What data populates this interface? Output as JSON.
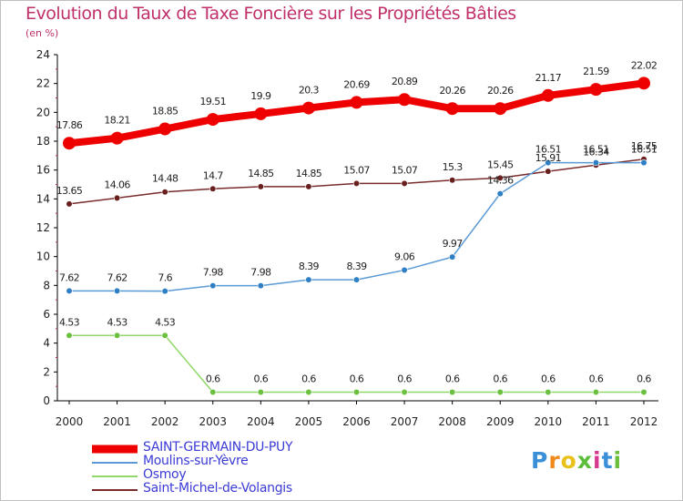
{
  "title": "Evolution du Taux de Taxe Foncière sur les Propriétés Bâties",
  "unit": "(en %)",
  "logo": {
    "text": "Proxiti",
    "letter_colors": [
      "#3a8fd8",
      "#f08a1c",
      "#e8c21a",
      "#5bbd3a",
      "#d63a8e",
      "#3a8fd8",
      "#6bbf3a"
    ]
  },
  "chart_data": {
    "type": "line",
    "categories": [
      "2000",
      "2001",
      "2002",
      "2003",
      "2004",
      "2005",
      "2006",
      "2007",
      "2008",
      "2009",
      "2010",
      "2011",
      "2012"
    ],
    "ylim": [
      0,
      24
    ],
    "yticks": [
      0,
      2,
      4,
      6,
      8,
      10,
      12,
      14,
      16,
      18,
      20,
      22,
      24
    ],
    "grid": false,
    "legend_position": "bottom-left",
    "series": [
      {
        "name": "SAINT-GERMAIN-DU-PUY",
        "color": "#ee0000",
        "width": 8,
        "values": [
          17.86,
          18.21,
          18.85,
          19.51,
          19.9,
          20.3,
          20.69,
          20.89,
          20.26,
          20.26,
          21.17,
          21.59,
          22.02
        ],
        "labels": [
          "17.86",
          "18.21",
          "18.85",
          "19.51",
          "19.9",
          "20.3",
          "20.69",
          "20.89",
          "20.26",
          "20.26",
          "21.17",
          "21.59",
          "22.02"
        ]
      },
      {
        "name": "Moulins-sur-Yèvre",
        "color": "#5b9bd5",
        "marker": "#2f7fc4",
        "width": 1.5,
        "values": [
          7.62,
          7.62,
          7.6,
          7.98,
          7.98,
          8.39,
          8.39,
          9.06,
          9.97,
          14.36,
          16.51,
          16.51,
          16.51
        ],
        "labels": [
          "7.62",
          "7.62",
          "7.6",
          "7.98",
          "7.98",
          "8.39",
          "8.39",
          "9.06",
          "9.97",
          "14.36",
          "16.51",
          "16.51",
          "16.51"
        ]
      },
      {
        "name": "Osmoy",
        "color": "#90d86a",
        "marker": "#6cc040",
        "width": 1.5,
        "values": [
          4.53,
          4.53,
          4.53,
          0.6,
          0.6,
          0.6,
          0.6,
          0.6,
          0.6,
          0.6,
          0.6,
          0.6,
          0.6
        ],
        "labels": [
          "4.53",
          "4.53",
          "4.53",
          "0.6",
          "0.6",
          "0.6",
          "0.6",
          "0.6",
          "0.6",
          "0.6",
          "0.6",
          "0.6",
          "0.6"
        ]
      },
      {
        "name": "Saint-Michel-de-Volangis",
        "color": "#7a2c2c",
        "marker": "#6a1f1f",
        "width": 1.5,
        "values": [
          13.65,
          14.06,
          14.48,
          14.7,
          14.85,
          14.85,
          15.07,
          15.07,
          15.3,
          15.45,
          15.91,
          16.34,
          16.75
        ],
        "labels": [
          "13.65",
          "14.06",
          "14.48",
          "14.7",
          "14.85",
          "14.85",
          "15.07",
          "15.07",
          "15.3",
          "15.45",
          "15.91",
          "16.34",
          "16.75"
        ]
      }
    ]
  }
}
